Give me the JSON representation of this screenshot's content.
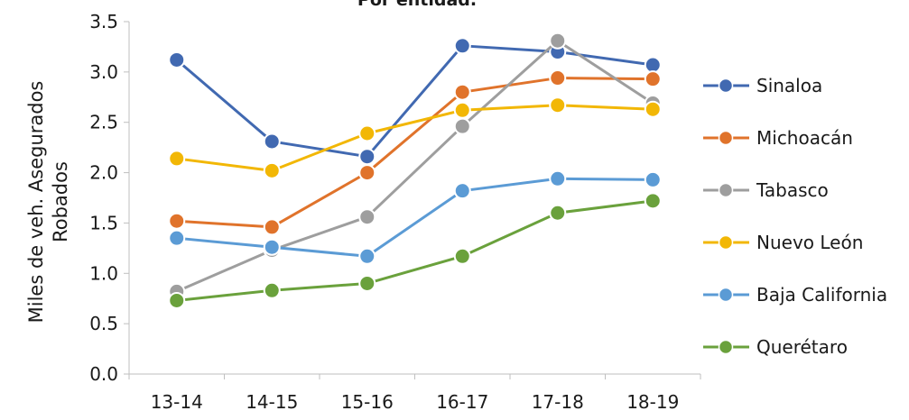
{
  "chart_data": {
    "type": "line",
    "title": "Por entidad.",
    "ylabel_lines": [
      "Miles de veh. Asegurados",
      "Robados"
    ],
    "xlabel": "",
    "categories": [
      "13-14",
      "14-15",
      "15-16",
      "16-17",
      "17-18",
      "18-19"
    ],
    "ylim": [
      0,
      3.5
    ],
    "yticks": [
      "0.0",
      "0.5",
      "1.0",
      "1.5",
      "2.0",
      "2.5",
      "3.0",
      "3.5"
    ],
    "grid": false,
    "legend_position": "right",
    "series": [
      {
        "name": "Sinaloa",
        "color": "#4169b1",
        "values": [
          3.12,
          2.31,
          2.16,
          3.26,
          3.2,
          3.07
        ]
      },
      {
        "name": "Michoacán",
        "color": "#e0732b",
        "values": [
          1.52,
          1.46,
          2.0,
          2.8,
          2.94,
          2.93
        ]
      },
      {
        "name": "Tabasco",
        "color": "#9e9e9e",
        "values": [
          0.82,
          1.23,
          1.56,
          2.46,
          3.31,
          2.69
        ]
      },
      {
        "name": "Nuevo León",
        "color": "#f2b705",
        "values": [
          2.14,
          2.02,
          2.39,
          2.62,
          2.67,
          2.63
        ]
      },
      {
        "name": "Baja California",
        "color": "#5b9bd5",
        "values": [
          1.35,
          1.26,
          1.17,
          1.82,
          1.94,
          1.93
        ]
      },
      {
        "name": "Querétaro",
        "color": "#6aa13c",
        "values": [
          0.73,
          0.83,
          0.9,
          1.17,
          1.6,
          1.72
        ]
      }
    ]
  }
}
